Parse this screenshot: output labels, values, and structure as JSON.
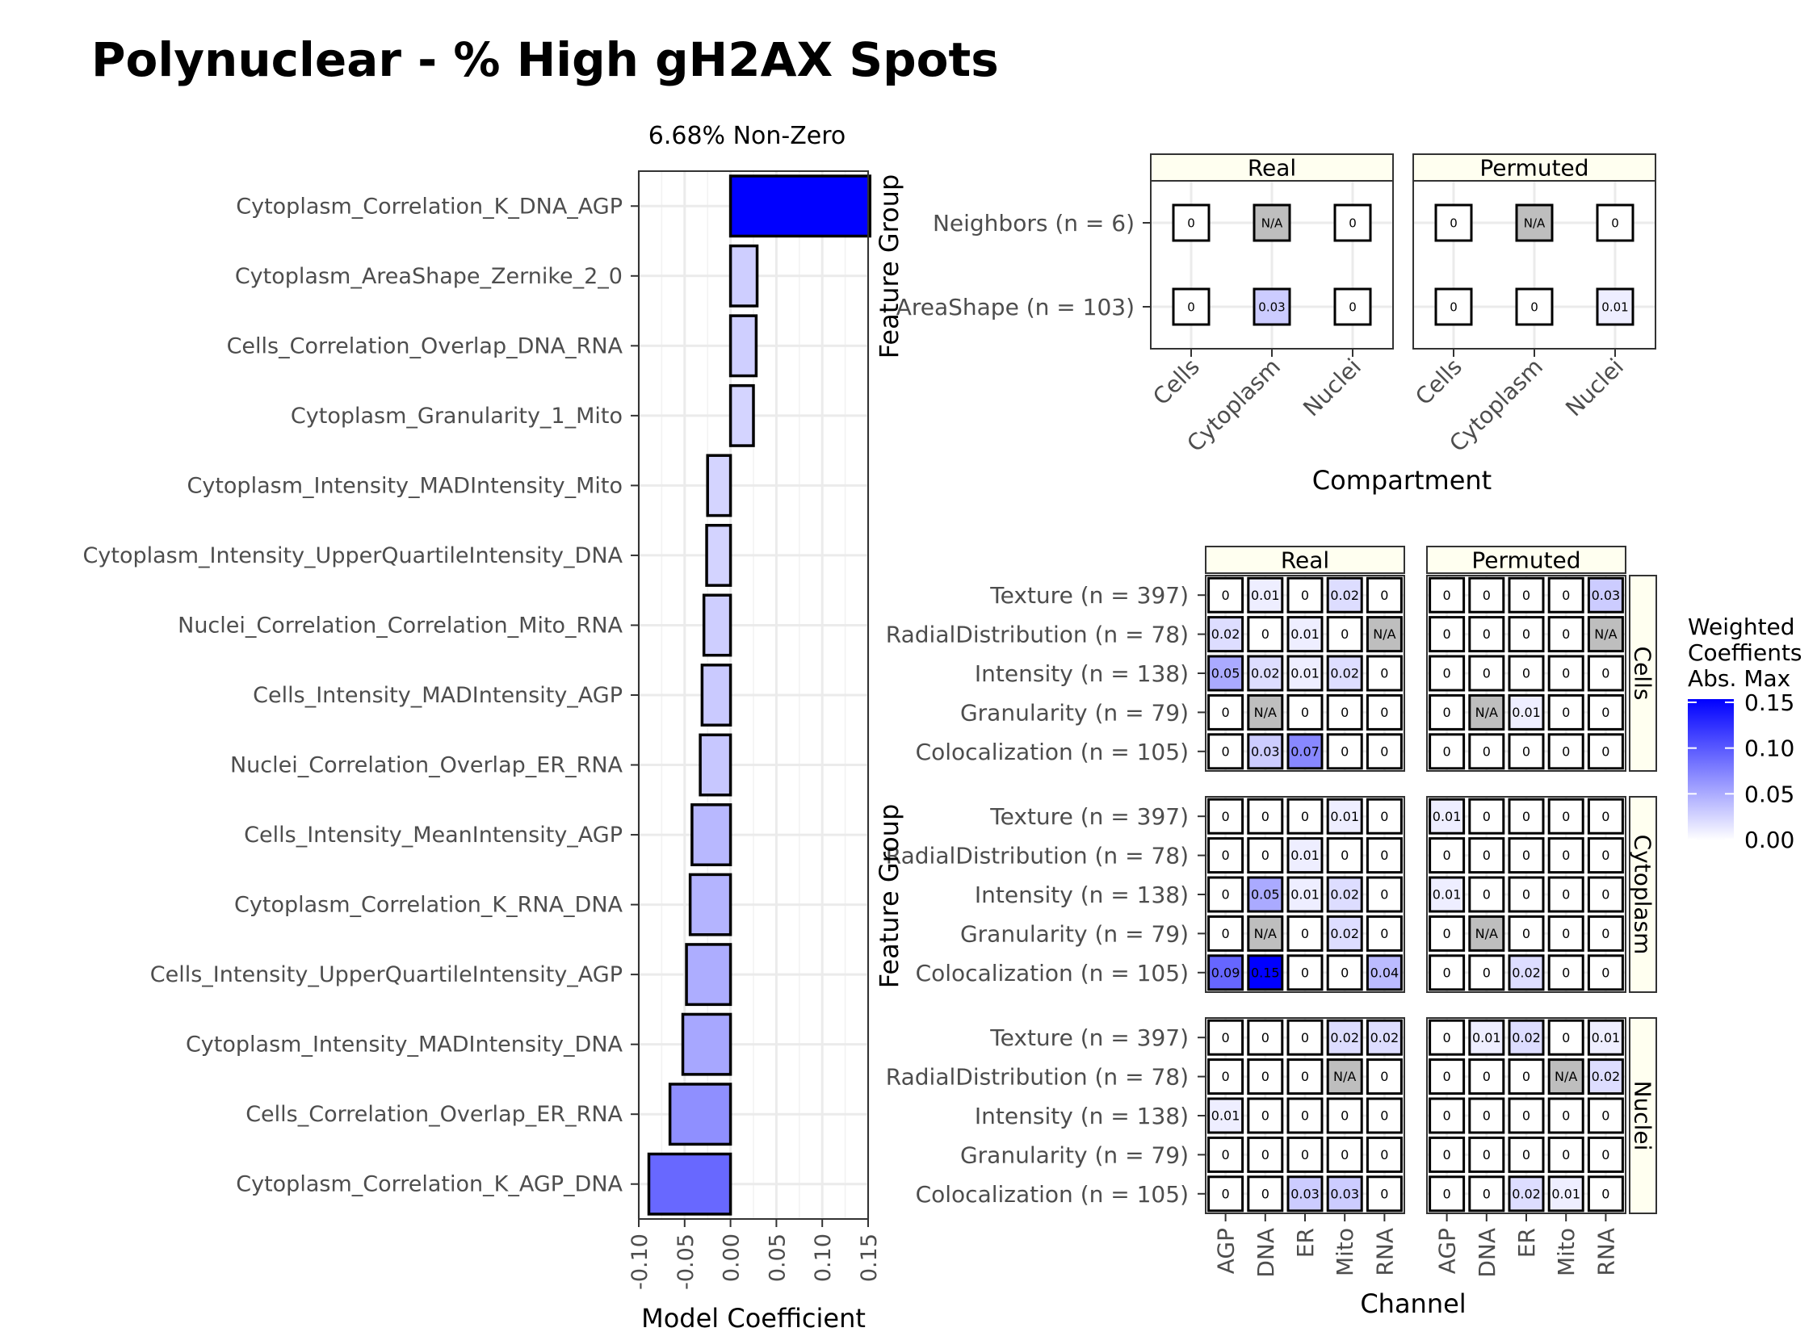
{
  "title": "Polynuclear - % High gH2AX Spots",
  "chart_data": [
    {
      "type": "bar",
      "orientation": "horizontal",
      "subtitle": "6.68% Non-Zero",
      "xlabel": "Model Coefficient",
      "xlim": [
        -0.1,
        0.15
      ],
      "xticks": [
        "-0.10",
        "-0.05",
        "0.00",
        "0.05",
        "0.10",
        "0.15"
      ],
      "categories": [
        "Cytoplasm_Correlation_K_DNA_AGP",
        "Cytoplasm_AreaShape_Zernike_2_0",
        "Cells_Correlation_Overlap_DNA_RNA",
        "Cytoplasm_Granularity_1_Mito",
        "Cytoplasm_Intensity_MADIntensity_Mito",
        "Cytoplasm_Intensity_UpperQuartileIntensity_DNA",
        "Nuclei_Correlation_Correlation_Mito_RNA",
        "Cells_Intensity_MADIntensity_AGP",
        "Nuclei_Correlation_Overlap_ER_RNA",
        "Cells_Intensity_MeanIntensity_AGP",
        "Cytoplasm_Correlation_K_RNA_DNA",
        "Cells_Intensity_UpperQuartileIntensity_AGP",
        "Cytoplasm_Intensity_MADIntensity_DNA",
        "Cells_Correlation_Overlap_ER_RNA",
        "Cytoplasm_Correlation_K_AGP_DNA"
      ],
      "values": [
        0.152,
        0.029,
        0.028,
        0.025,
        -0.025,
        -0.026,
        -0.029,
        -0.031,
        -0.033,
        -0.042,
        -0.044,
        -0.048,
        -0.052,
        -0.066,
        -0.089
      ],
      "color_scale": {
        "low": "#FFFFFF",
        "high": "#0000FF",
        "max": 0.15
      }
    },
    {
      "type": "heatmap",
      "ylabel": "Feature Group",
      "xlabel": "Compartment",
      "facets": [
        "Real",
        "Permuted"
      ],
      "columns": [
        "Cells",
        "Cytoplasm",
        "Nuclei"
      ],
      "rows": [
        "Neighbors (n = 6)",
        "AreaShape (n = 103)"
      ],
      "cells": {
        "Real": [
          [
            "0",
            "N/A",
            "0"
          ],
          [
            "0",
            "0.03",
            "0"
          ]
        ],
        "Permuted": [
          [
            "0",
            "N/A",
            "0"
          ],
          [
            "0",
            "0",
            "0.01"
          ]
        ]
      }
    },
    {
      "type": "heatmap",
      "ylabel": "Feature Group",
      "xlabel": "Channel",
      "facets_col": [
        "Real",
        "Permuted"
      ],
      "facets_row": [
        "Cells",
        "Cytoplasm",
        "Nuclei"
      ],
      "columns": [
        "AGP",
        "DNA",
        "ER",
        "Mito",
        "RNA"
      ],
      "rows": [
        "Texture (n = 397)",
        "RadialDistribution (n = 78)",
        "Intensity (n = 138)",
        "Granularity (n = 79)",
        "Colocalization (n = 105)"
      ],
      "cells": {
        "Cells": {
          "Real": [
            [
              "0",
              "0.01",
              "0",
              "0.02",
              "0"
            ],
            [
              "0.02",
              "0",
              "0.01",
              "0",
              "N/A"
            ],
            [
              "0.05",
              "0.02",
              "0.01",
              "0.02",
              "0"
            ],
            [
              "0",
              "N/A",
              "0",
              "0",
              "0"
            ],
            [
              "0",
              "0.03",
              "0.07",
              "0",
              "0"
            ]
          ],
          "Permuted": [
            [
              "0",
              "0",
              "0",
              "0",
              "0.03"
            ],
            [
              "0",
              "0",
              "0",
              "0",
              "N/A"
            ],
            [
              "0",
              "0",
              "0",
              "0",
              "0"
            ],
            [
              "0",
              "N/A",
              "0.01",
              "0",
              "0"
            ],
            [
              "0",
              "0",
              "0",
              "0",
              "0"
            ]
          ]
        },
        "Cytoplasm": {
          "Real": [
            [
              "0",
              "0",
              "0",
              "0.01",
              "0"
            ],
            [
              "0",
              "0",
              "0.01",
              "0",
              "0"
            ],
            [
              "0",
              "0.05",
              "0.01",
              "0.02",
              "0"
            ],
            [
              "0",
              "N/A",
              "0",
              "0.02",
              "0"
            ],
            [
              "0.09",
              "0.15",
              "0",
              "0",
              "0.04"
            ]
          ],
          "Permuted": [
            [
              "0.01",
              "0",
              "0",
              "0",
              "0"
            ],
            [
              "0",
              "0",
              "0",
              "0",
              "0"
            ],
            [
              "0.01",
              "0",
              "0",
              "0",
              "0"
            ],
            [
              "0",
              "N/A",
              "0",
              "0",
              "0"
            ],
            [
              "0",
              "0",
              "0.02",
              "0",
              "0"
            ]
          ]
        },
        "Nuclei": {
          "Real": [
            [
              "0",
              "0",
              "0",
              "0.02",
              "0.02"
            ],
            [
              "0",
              "0",
              "0",
              "N/A",
              "0"
            ],
            [
              "0.01",
              "0",
              "0",
              "0",
              "0"
            ],
            [
              "0",
              "0",
              "0",
              "0",
              "0"
            ],
            [
              "0",
              "0",
              "0.03",
              "0.03",
              "0"
            ]
          ],
          "Permuted": [
            [
              "0",
              "0.01",
              "0.02",
              "0",
              "0.01"
            ],
            [
              "0",
              "0",
              "0",
              "N/A",
              "0.02"
            ],
            [
              "0",
              "0",
              "0",
              "0",
              "0"
            ],
            [
              "0",
              "0",
              "0",
              "0",
              "0"
            ],
            [
              "0",
              "0",
              "0.02",
              "0.01",
              "0"
            ]
          ]
        }
      }
    }
  ],
  "legend": {
    "title_lines": [
      "Weighted",
      "Coeffients",
      "Abs. Max"
    ],
    "ticks": [
      "0.15",
      "0.10",
      "0.05",
      "0.00"
    ],
    "tick_values": [
      0.15,
      0.1,
      0.05,
      0.0
    ],
    "max": 0.15,
    "low_color": "#FFFFFF",
    "high_color": "#0000FF",
    "na_color": "#BEBEBE"
  }
}
